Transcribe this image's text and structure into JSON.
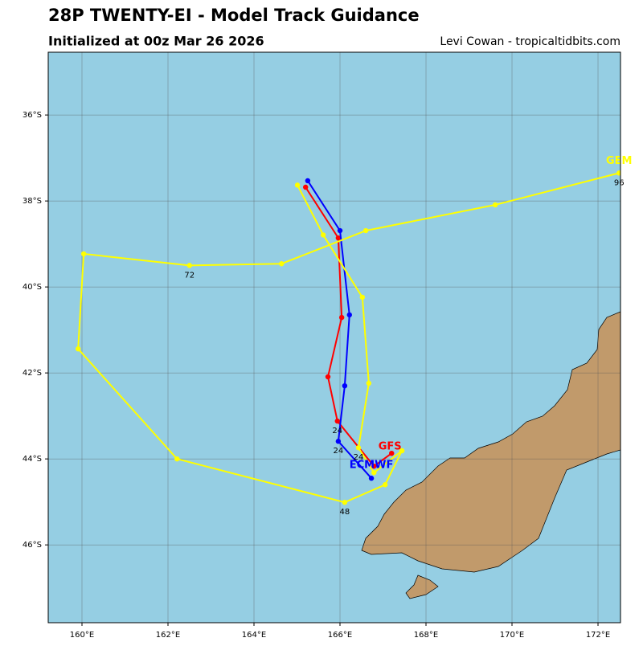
{
  "chart_data": {
    "type": "line",
    "title": "28P TWENTY-EI - Model Track Guidance",
    "subtitle": "Initialized at 00z Mar 26 2026",
    "credit": "Levi Cowan - tropicaltidbits.com",
    "xlim": [
      159.215,
      172.523
    ],
    "ylim": [
      -47.81,
      -34.54
    ],
    "xticks": [
      {
        "value": 160,
        "label": "160°E"
      },
      {
        "value": 162,
        "label": "162°E"
      },
      {
        "value": 164,
        "label": "164°E"
      },
      {
        "value": 166,
        "label": "166°E"
      },
      {
        "value": 168,
        "label": "168°E"
      },
      {
        "value": 170,
        "label": "170°E"
      },
      {
        "value": 172,
        "label": "172°E"
      }
    ],
    "yticks": [
      {
        "value": -36,
        "label": "36°S"
      },
      {
        "value": -38,
        "label": "38°S"
      },
      {
        "value": -40,
        "label": "40°S"
      },
      {
        "value": -42,
        "label": "42°S"
      },
      {
        "value": -44,
        "label": "44°S"
      },
      {
        "value": -46,
        "label": "46°S"
      }
    ],
    "grid": true,
    "series": [
      {
        "name": "GFS",
        "color": "#ff0000",
        "x": [
          167.2,
          166.79,
          165.94,
          165.72,
          166.04,
          165.96,
          165.2
        ],
        "values": [
          -43.87,
          -44.17,
          -43.12,
          -42.09,
          -40.71,
          -38.86,
          -37.68
        ],
        "point_labels": [
          null,
          null,
          "24",
          null,
          null,
          null,
          null
        ]
      },
      {
        "name": "ECMWF",
        "color": "#0000ff",
        "x": [
          166.73,
          165.96,
          166.11,
          166.22,
          166.0,
          165.25
        ],
        "values": [
          -44.45,
          -43.59,
          -42.3,
          -40.65,
          -38.69,
          -37.53
        ],
        "point_labels": [
          null,
          "24",
          null,
          null,
          null,
          null
        ]
      },
      {
        "name": "GEM",
        "color": "#ffff00",
        "x": [
          167.44,
          167.05,
          166.11,
          162.21,
          159.91,
          160.04,
          162.5,
          164.64,
          166.6,
          169.61,
          172.49
        ],
        "values": [
          -43.81,
          -44.6,
          -45.01,
          -44.0,
          -41.44,
          -39.23,
          -39.5,
          -39.46,
          -38.69,
          -38.09,
          -37.35
        ],
        "point_labels": [
          null,
          null,
          "48",
          null,
          null,
          null,
          "72",
          null,
          null,
          null,
          "96"
        ]
      },
      {
        "color": "#ffff00",
        "x": [
          167.44,
          166.79,
          166.43,
          166.67,
          166.52,
          165.61,
          165.01
        ],
        "values": [
          -43.81,
          -44.32,
          -43.74,
          -42.24,
          -40.24,
          -38.79,
          -37.63
        ],
        "point_labels": [
          null,
          null,
          "24",
          null,
          null,
          null,
          null
        ]
      }
    ]
  }
}
